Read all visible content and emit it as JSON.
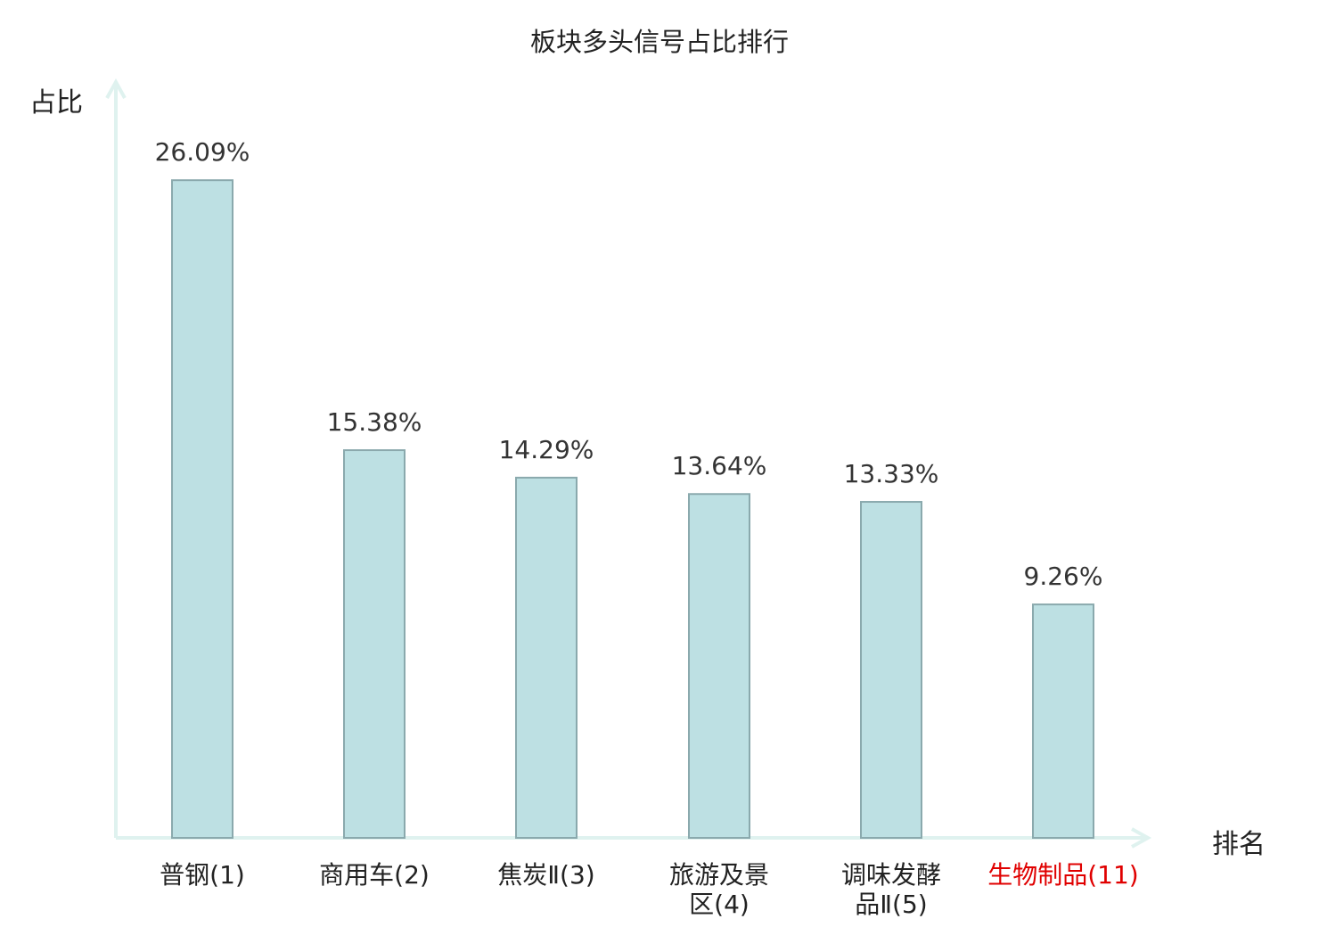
{
  "chart_data": {
    "type": "bar",
    "title": "板块多头信号占比排行",
    "ylabel": "占比",
    "xlabel": "排名",
    "categories": [
      "普钢(1)",
      "商用车(2)",
      "焦炭Ⅱ(3)",
      "旅游及景区(4)",
      "调味发酵品Ⅱ(5)",
      "生物制品(11)"
    ],
    "category_lines": [
      [
        "普钢(1)"
      ],
      [
        "商用车(2)"
      ],
      [
        "焦炭Ⅱ(3)"
      ],
      [
        "旅游及景",
        "区(4)"
      ],
      [
        "调味发酵",
        "品Ⅱ(5)"
      ],
      [
        "生物制品(11)"
      ]
    ],
    "values": [
      26.09,
      15.38,
      14.29,
      13.64,
      13.33,
      9.26
    ],
    "value_labels": [
      "26.09%",
      "15.38%",
      "14.29%",
      "13.64%",
      "13.33%",
      "9.26%"
    ],
    "highlight_index": 5,
    "ylim": [
      0,
      30
    ],
    "grid": false,
    "colors": {
      "bar_fill": "#bde0e3",
      "bar_stroke": "#8aa9ad",
      "axis": "#dff2ef",
      "highlight_label": "#e00000"
    }
  }
}
